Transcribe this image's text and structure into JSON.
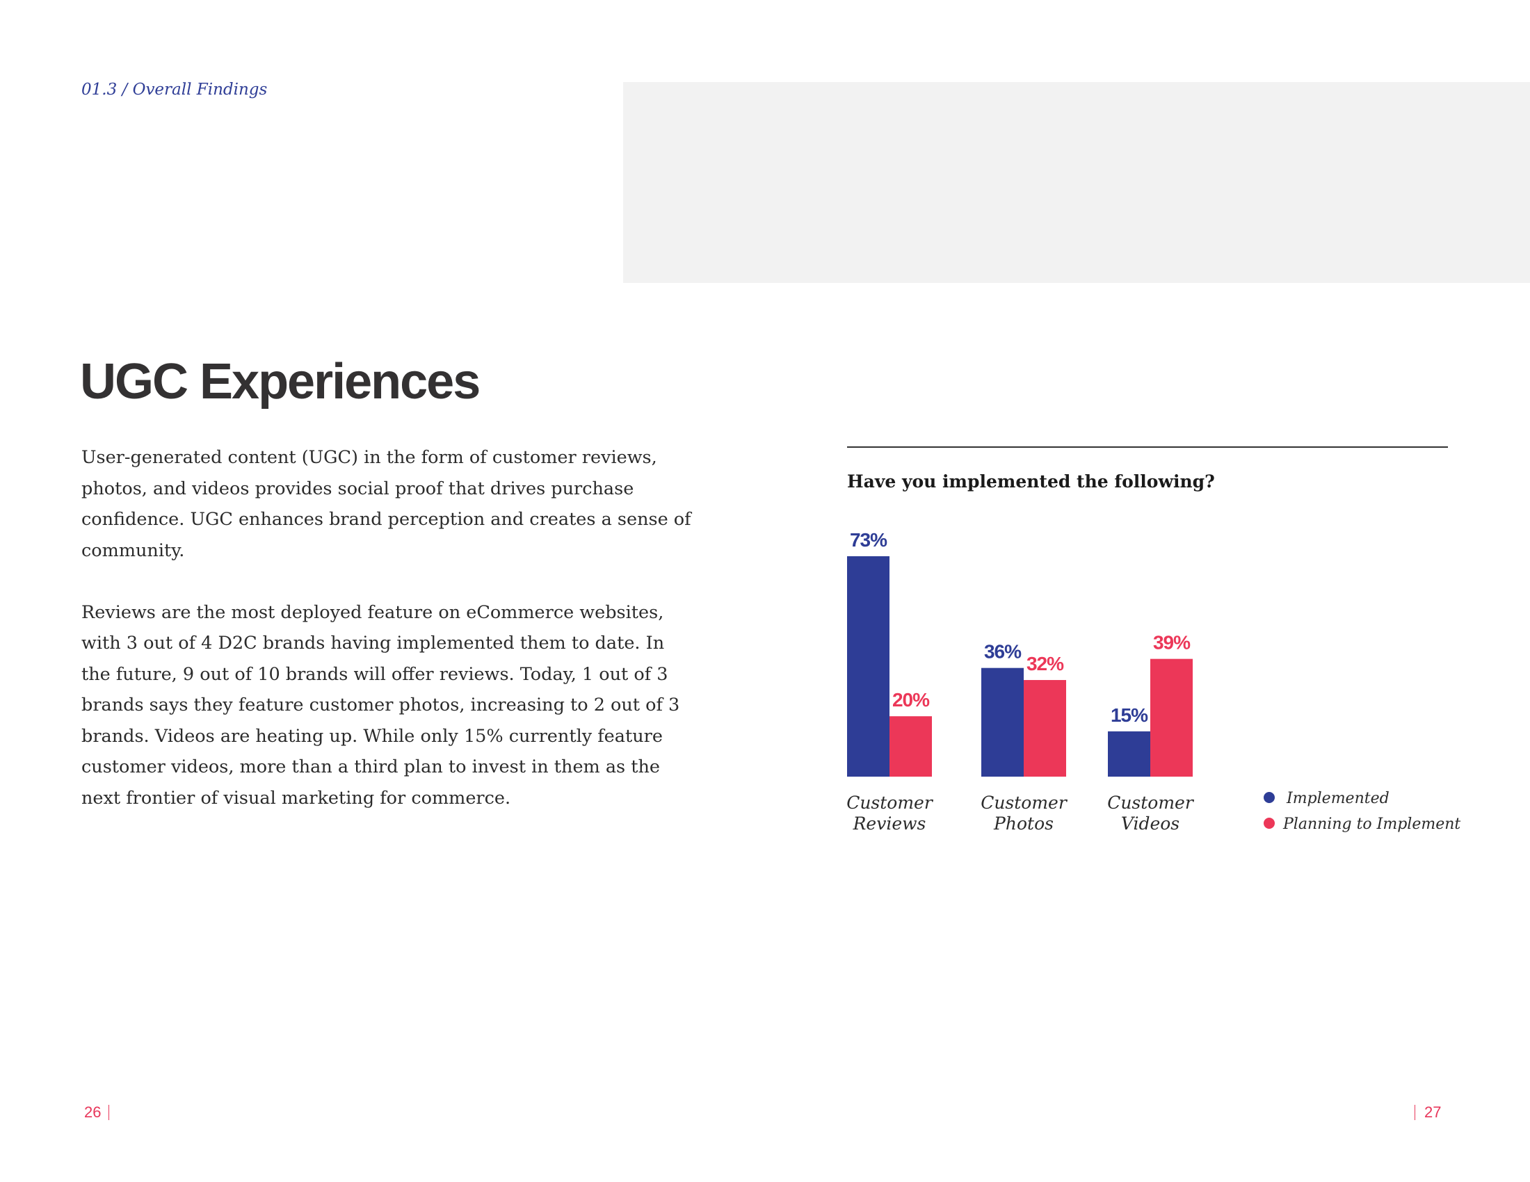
{
  "header": {
    "section_label": "01.3 / Overall Findings"
  },
  "page": {
    "title": "UGC Experiences",
    "paragraphs": [
      "User-generated content (UGC) in the form of customer reviews, photos, and videos provides social proof that drives purchase confidence. UGC enhances brand perception and creates a sense of community.",
      "Reviews are the most deployed feature on eCommerce websites, with 3 out of 4 D2C brands having implemented them to date. In the future, 9 out of 10 brands will offer reviews. Today, 1 out of 3 brands says they feature customer photos, increasing to 2 out of 3 brands. Videos are heating up. While only 15% currently feature customer videos, more than a third plan to invest in them as the next frontier of visual marketing for commerce."
    ]
  },
  "chart_data": {
    "type": "bar",
    "title": "Have you implemented the following?",
    "categories": [
      [
        "Customer",
        "Reviews"
      ],
      [
        "Customer",
        "Photos"
      ],
      [
        "Customer",
        "Videos"
      ]
    ],
    "series": [
      {
        "name": "Implemented",
        "values": [
          73,
          36,
          15
        ],
        "labels": [
          "73%",
          "36%",
          "15%"
        ],
        "color": "#2e3d96"
      },
      {
        "name": "Planning to Implement",
        "values": [
          20,
          32,
          39
        ],
        "labels": [
          "20%",
          "32%",
          "39%"
        ],
        "color": "#ec3758"
      }
    ],
    "ylim": [
      0,
      73
    ],
    "legend": "right",
    "grid": false
  },
  "footer": {
    "left_page": "26",
    "right_page": "27"
  },
  "colors": {
    "accent_blue": "#2e3d96",
    "accent_red": "#ec3758"
  }
}
